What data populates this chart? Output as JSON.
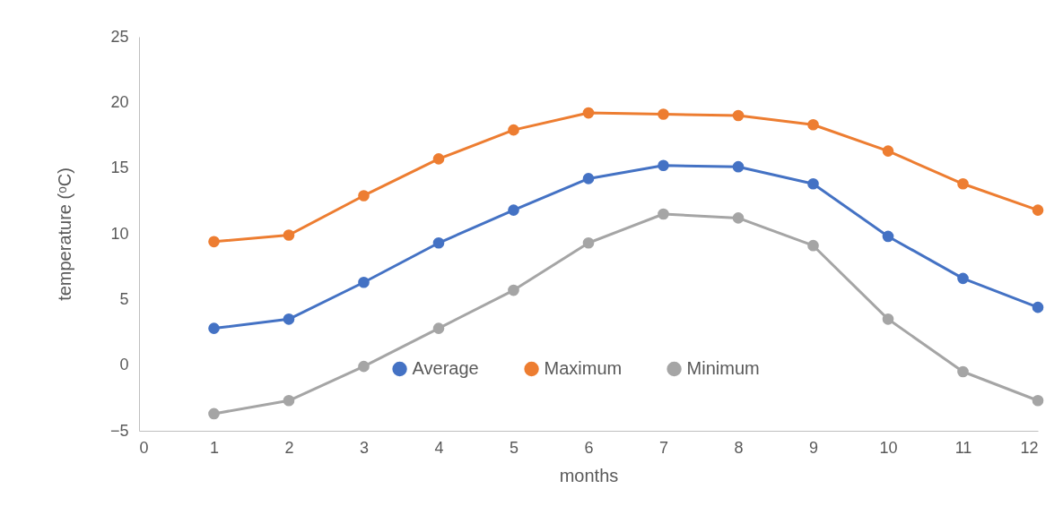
{
  "chart_data": {
    "type": "line",
    "xlabel": "months",
    "ylabel": "temperature (ᵒC)",
    "x": [
      1,
      2,
      3,
      4,
      5,
      6,
      7,
      8,
      9,
      10,
      11,
      12
    ],
    "series": [
      {
        "name": "Average",
        "color": "#4472c4",
        "values": [
          2.8,
          3.5,
          6.3,
          9.3,
          11.8,
          14.2,
          15.2,
          15.1,
          13.8,
          9.8,
          6.6,
          4.4
        ]
      },
      {
        "name": "Maximum",
        "color": "#ed7d31",
        "values": [
          9.4,
          9.9,
          12.9,
          15.7,
          17.9,
          19.2,
          19.1,
          19.0,
          18.3,
          16.3,
          13.8,
          11.8
        ]
      },
      {
        "name": "Minimum",
        "color": "#a5a5a5",
        "values": [
          -3.7,
          -2.7,
          -0.1,
          2.8,
          5.7,
          9.3,
          11.5,
          11.2,
          9.1,
          3.5,
          -0.5,
          -2.7
        ]
      }
    ],
    "xlim": [
      0,
      12
    ],
    "xticks": [
      0,
      1,
      2,
      3,
      4,
      5,
      6,
      7,
      8,
      9,
      10,
      11,
      12
    ],
    "ylim": [
      -5,
      25
    ],
    "yticks": [
      -5,
      0,
      5,
      10,
      15,
      20,
      25
    ],
    "grid": false,
    "legend": "bottom",
    "marker": "circle",
    "line_style": "solid"
  }
}
